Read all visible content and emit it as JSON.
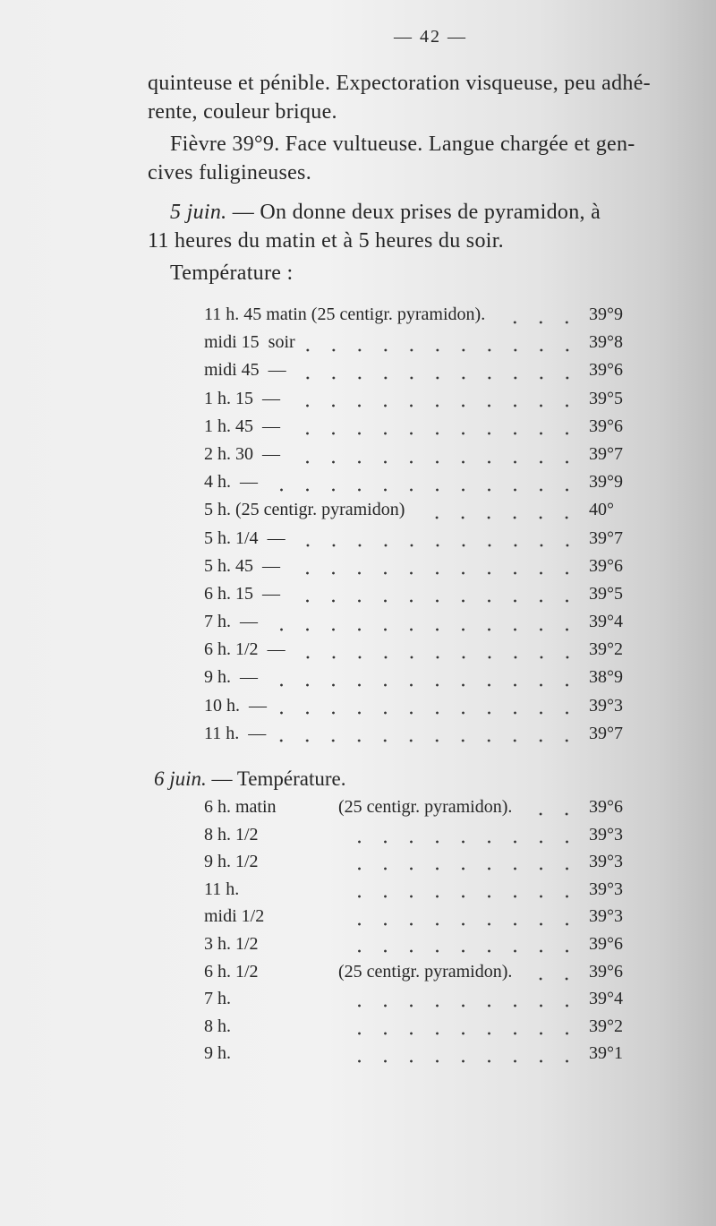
{
  "page_number": "— 42 —",
  "paragraph_lines": [
    "quinteuse et pénible. Expectoration visqueuse, peu adhé-",
    "rente, couleur brique.",
    "Fièvre 39°9. Face vultueuse. Langue chargée et gen-",
    "cives fuligineuses.",
    "— On donne deux prises de pyramidon, à",
    "11 heures du matin et à 5 heures du soir.",
    "Température :"
  ],
  "date_5": "5 juin.",
  "table_5_juin": [
    {
      "time": "11 h. 45 matin (25 centigr. pyramidon).",
      "note": "",
      "value": "39°9"
    },
    {
      "time": "midi 15",
      "note": "soir",
      "value": "39°8"
    },
    {
      "time": "midi 45",
      "note": "—",
      "value": "39°6"
    },
    {
      "time": "1 h. 15",
      "note": "—",
      "value": "39°5"
    },
    {
      "time": "1 h. 45",
      "note": "—",
      "value": "39°6"
    },
    {
      "time": "2 h. 30",
      "note": "—",
      "value": "39°7"
    },
    {
      "time": "4 h.",
      "note": "—",
      "value": "39°9"
    },
    {
      "time": "5 h. (25 centigr. pyramidon)",
      "note": "",
      "value": "40°"
    },
    {
      "time": "5 h. 1/4",
      "note": "—",
      "value": "39°7"
    },
    {
      "time": "5 h. 45",
      "note": "—",
      "value": "39°6"
    },
    {
      "time": "6 h. 15",
      "note": "—",
      "value": "39°5"
    },
    {
      "time": "7 h.",
      "note": "—",
      "value": "39°4"
    },
    {
      "time": "6 h. 1/2",
      "note": "—",
      "value": "39°2"
    },
    {
      "time": "9 h.",
      "note": "—",
      "value": "38°9"
    },
    {
      "time": "10 h.",
      "note": "—",
      "value": "39°3"
    },
    {
      "time": "11 h.",
      "note": "—",
      "value": "39°7"
    }
  ],
  "date_6": "6 juin.",
  "heading_6": "— Température.",
  "table_6_juin": [
    {
      "time": "6 h. matin",
      "note": "(25 centigr. pyramidon).",
      "value": "39°6"
    },
    {
      "time": "8 h. 1/2",
      "note": "",
      "value": "39°3"
    },
    {
      "time": "9 h. 1/2",
      "note": "",
      "value": "39°3"
    },
    {
      "time": "11 h.",
      "note": "",
      "value": "39°3"
    },
    {
      "time": "midi 1/2",
      "note": "",
      "value": "39°3"
    },
    {
      "time": "3 h. 1/2",
      "note": "",
      "value": "39°6"
    },
    {
      "time": "6 h. 1/2",
      "note": "(25 centigr. pyramidon).",
      "value": "39°6"
    },
    {
      "time": "7 h.",
      "note": "",
      "value": "39°4"
    },
    {
      "time": "8 h.",
      "note": "",
      "value": "39°2"
    },
    {
      "time": "9 h.",
      "note": "",
      "value": "39°1"
    }
  ]
}
